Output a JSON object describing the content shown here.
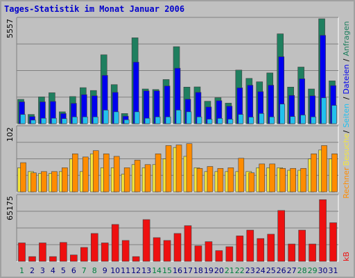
{
  "title": "Tages-Statistik im Monat Januar 2006",
  "colors": {
    "background": "#c0c0c0",
    "panel": "#c0c0c0",
    "grid": "#808080",
    "anfragen": "#1f7f5f",
    "dateien": "#0000ee",
    "seiten": "#22c0ee",
    "besuche": "#f5e63a",
    "rechner": "#ff8c00",
    "kb": "#ee1010",
    "weekday_label": "#000080",
    "weekend_label": "#008040",
    "title": "#0000cc"
  },
  "chart_data": [
    {
      "type": "bar",
      "title": "Tages-Statistik im Monat Januar 2006",
      "ymax_label": "5557",
      "ylim": [
        0,
        5557
      ],
      "categories": [
        "1",
        "2",
        "3",
        "4",
        "5",
        "6",
        "7",
        "8",
        "9",
        "10",
        "11",
        "12",
        "13",
        "14",
        "15",
        "16",
        "17",
        "18",
        "19",
        "20",
        "21",
        "22",
        "23",
        "24",
        "25",
        "26",
        "27",
        "28",
        "29",
        "30",
        "31"
      ],
      "weekend_days": [
        "1",
        "7",
        "8",
        "14",
        "15",
        "21",
        "22",
        "28",
        "29"
      ],
      "series": [
        {
          "name": "Anfragen",
          "values": [
            1290,
            490,
            1420,
            1640,
            630,
            1440,
            1910,
            1760,
            3650,
            2070,
            540,
            4550,
            1840,
            1810,
            2340,
            4080,
            1940,
            1950,
            1190,
            1380,
            1090,
            2840,
            2400,
            2220,
            2690,
            4760,
            1940,
            3000,
            1840,
            5557,
            2270
          ]
        },
        {
          "name": "Dateien",
          "values": [
            1160,
            380,
            1160,
            1180,
            540,
            1080,
            1540,
            1480,
            2560,
            1660,
            400,
            3260,
            1740,
            1740,
            2000,
            2940,
            1300,
            1660,
            890,
            1220,
            930,
            1900,
            2040,
            1700,
            2040,
            3550,
            1500,
            2380,
            1480,
            4680,
            2020
          ]
        },
        {
          "name": "Seiten",
          "values": [
            490,
            190,
            290,
            290,
            270,
            360,
            360,
            360,
            720,
            630,
            210,
            630,
            290,
            360,
            360,
            720,
            630,
            360,
            240,
            280,
            240,
            490,
            350,
            540,
            360,
            1040,
            380,
            460,
            360,
            1370,
            970
          ]
        }
      ]
    },
    {
      "type": "bar",
      "ymax_label": "102",
      "ylim": [
        0,
        102
      ],
      "categories": [
        "1",
        "2",
        "3",
        "4",
        "5",
        "6",
        "7",
        "8",
        "9",
        "10",
        "11",
        "12",
        "13",
        "14",
        "15",
        "16",
        "17",
        "18",
        "19",
        "20",
        "21",
        "22",
        "23",
        "24",
        "25",
        "26",
        "27",
        "28",
        "29",
        "30",
        "31"
      ],
      "series": [
        {
          "name": "Besuche",
          "values": [
            38,
            32,
            29,
            29,
            32,
            52,
            32,
            60,
            38,
            38,
            28,
            43,
            38,
            43,
            52,
            70,
            56,
            38,
            32,
            32,
            32,
            32,
            32,
            38,
            38,
            38,
            34,
            34,
            52,
            66,
            52
          ]
        },
        {
          "name": "Rechner",
          "values": [
            46,
            30,
            32,
            32,
            38,
            60,
            55,
            65,
            60,
            56,
            38,
            50,
            43,
            60,
            73,
            74,
            76,
            37,
            40,
            37,
            38,
            53,
            30,
            44,
            44,
            37,
            37,
            37,
            60,
            73,
            60
          ]
        }
      ]
    },
    {
      "type": "bar",
      "ymax_label": "65175",
      "ylim": [
        0,
        65175
      ],
      "categories": [
        "1",
        "2",
        "3",
        "4",
        "5",
        "6",
        "7",
        "8",
        "9",
        "10",
        "11",
        "12",
        "13",
        "14",
        "15",
        "16",
        "17",
        "18",
        "19",
        "20",
        "21",
        "22",
        "23",
        "24",
        "25",
        "26",
        "27",
        "28",
        "29",
        "30",
        "31"
      ],
      "series": [
        {
          "name": "kB",
          "values": [
            18390,
            4730,
            18390,
            4730,
            18850,
            6380,
            13880,
            27800,
            18390,
            36790,
            20830,
            4730,
            41630,
            23630,
            20830,
            27800,
            35580,
            15480,
            19640,
            10710,
            14600,
            25390,
            31150,
            22750,
            27080,
            50730,
            17300,
            31150,
            17300,
            61530,
            38490
          ]
        }
      ]
    }
  ],
  "legend": {
    "top_chart": [
      "Anfragen",
      "/",
      "Dateien",
      "/",
      "Seiten",
      "/",
      "Besuche"
    ],
    "mid_chart": [
      "Rechner"
    ],
    "bottom_chart": [
      "kB"
    ]
  }
}
